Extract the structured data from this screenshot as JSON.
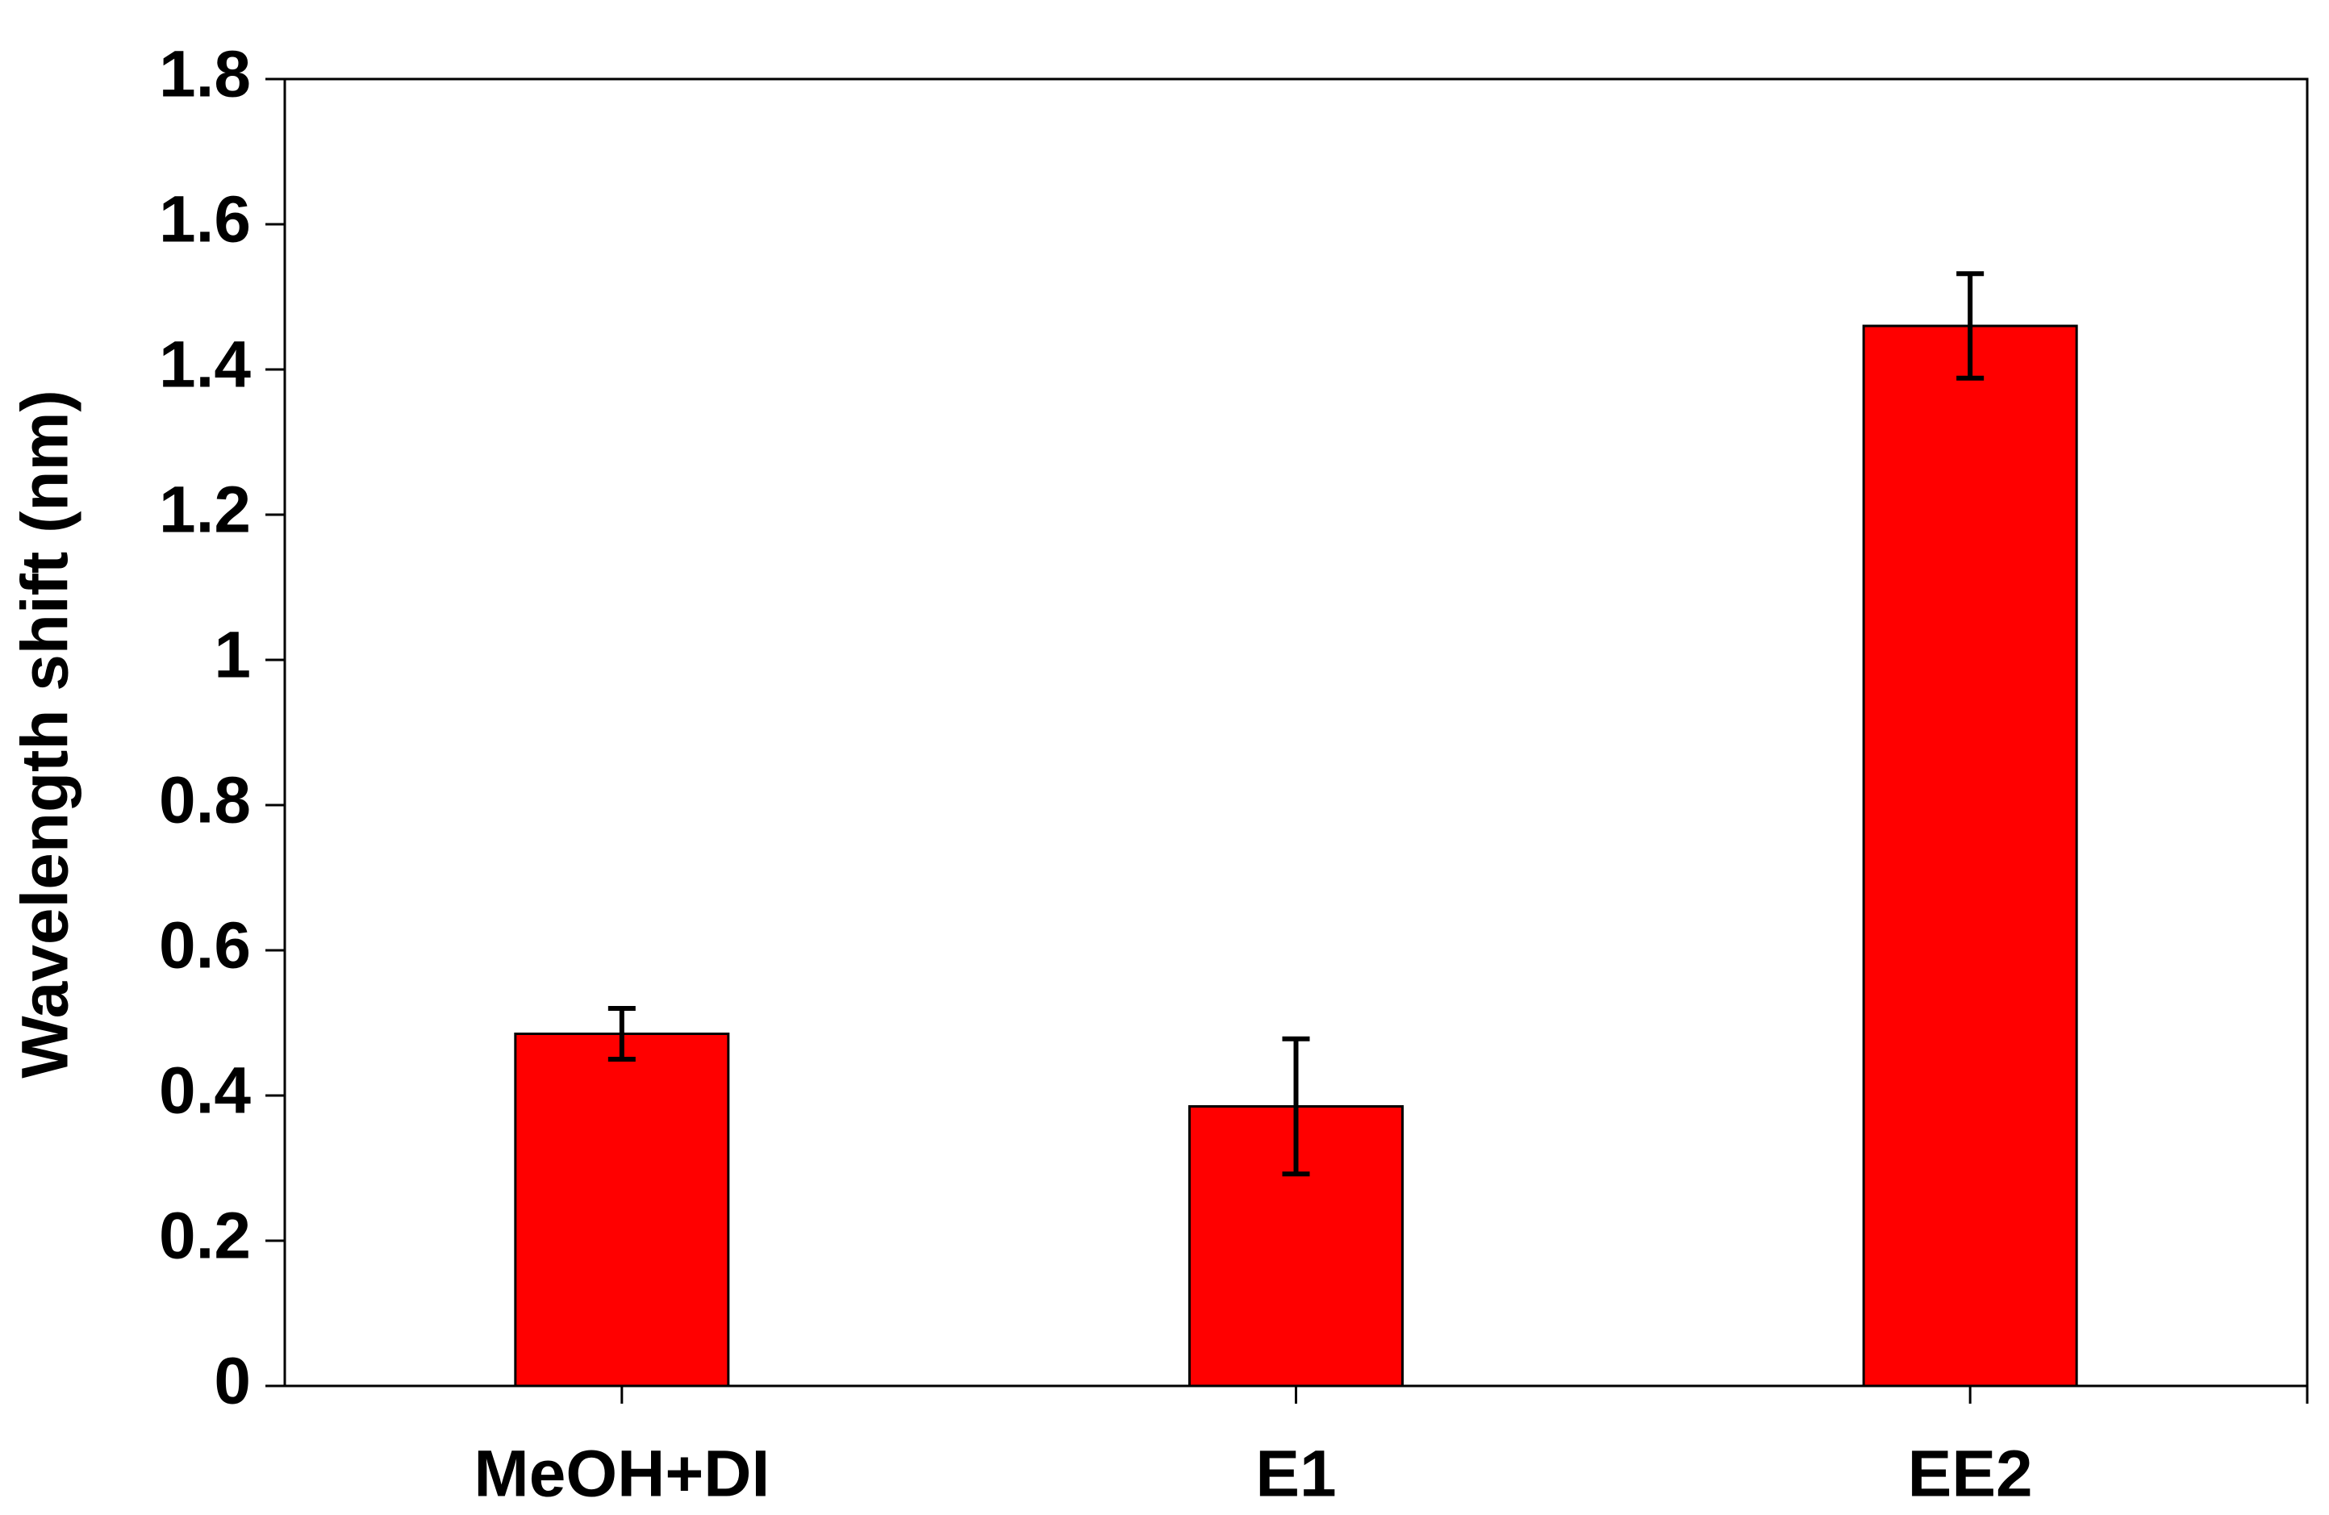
{
  "chart_data": {
    "type": "bar",
    "y_label": "Wavelength shift (nm)",
    "categories": [
      "MeOH+DI",
      "E1",
      "EE2"
    ],
    "values": [
      0.485,
      0.385,
      1.46
    ],
    "errors": [
      0.035,
      0.093,
      0.072
    ],
    "color": "#ff0000",
    "ylim": [
      0,
      1.8
    ],
    "yticks": [
      0,
      0.2,
      0.4,
      0.6,
      0.8,
      1,
      1.2,
      1.4,
      1.6,
      1.8
    ],
    "grid": false
  }
}
